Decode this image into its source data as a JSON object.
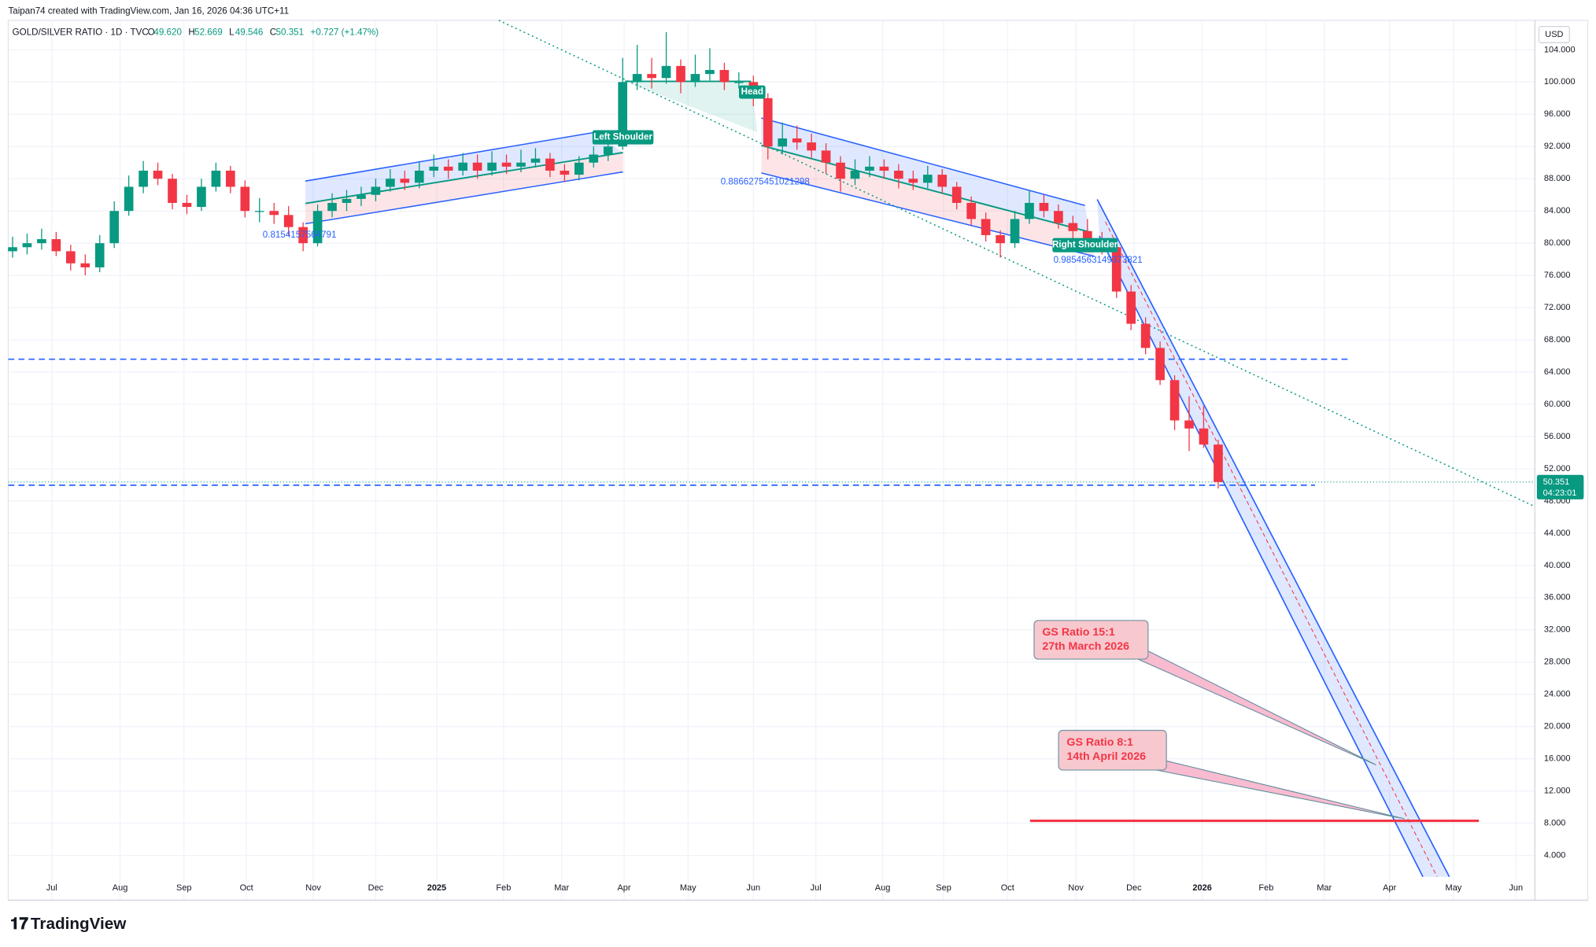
{
  "header": {
    "credit": "Taipan74 created with TradingView.com, Jan 16, 2026 04:36 UTC+11",
    "symbol": "GOLD/SILVER RATIO · 1D · TVC",
    "ohlc": [
      {
        "key": "O",
        "value": "49.620"
      },
      {
        "key": "H",
        "value": "52.669"
      },
      {
        "key": "L",
        "value": "49.546"
      },
      {
        "key": "C",
        "value": "50.351"
      }
    ],
    "change": "+0.727 (+1.47%)"
  },
  "currency": "USD",
  "last_price": {
    "value": 50.351,
    "label": "50.351",
    "countdown": "04:23:01"
  },
  "logo": "TradingView",
  "annotations": {
    "left_shoulder": "Left Shoulder",
    "head": "Head",
    "right_shoulder": "Right Shoulder",
    "fib1": "0.8154157564791",
    "fib2": "0.8866275451021298",
    "fib3": "0.9854563149373821",
    "callout1": [
      "GS Ratio 15:1",
      "27th March 2026"
    ],
    "callout2": [
      "GS Ratio 8:1",
      "14th April 2026"
    ]
  },
  "chart_data": {
    "type": "candlestick",
    "up_color": "#089981",
    "down_color": "#f23645",
    "grid": true,
    "ylim": [
      -1.556,
      107.66
    ],
    "xlim": [
      -0.3,
      104.8
    ],
    "yticks": [
      {
        "value": 4,
        "label": "4.000"
      },
      {
        "value": 8,
        "label": "8.000"
      },
      {
        "value": 12,
        "label": "12.000"
      },
      {
        "value": 16,
        "label": "16.000"
      },
      {
        "value": 20,
        "label": "20.000"
      },
      {
        "value": 24,
        "label": "24.000"
      },
      {
        "value": 28,
        "label": "28.000"
      },
      {
        "value": 32,
        "label": "32.000"
      },
      {
        "value": 36,
        "label": "36.000"
      },
      {
        "value": 40,
        "label": "40.000"
      },
      {
        "value": 44,
        "label": "44.000"
      },
      {
        "value": 48,
        "label": "48.000"
      },
      {
        "value": 52,
        "label": "52.000"
      },
      {
        "value": 56,
        "label": "56.000"
      },
      {
        "value": 60,
        "label": "60.000"
      },
      {
        "value": 64,
        "label": "64.000"
      },
      {
        "value": 68,
        "label": "68.000"
      },
      {
        "value": 72,
        "label": "72.000"
      },
      {
        "value": 76,
        "label": "76.000"
      },
      {
        "value": 80,
        "label": "80.000"
      },
      {
        "value": 84,
        "label": "84.000"
      },
      {
        "value": 88,
        "label": "88.000"
      },
      {
        "value": 92,
        "label": "92.000"
      },
      {
        "value": 96,
        "label": "96.000"
      },
      {
        "value": 100,
        "label": "100.000"
      },
      {
        "value": 104,
        "label": "104.000"
      }
    ],
    "xticks": [
      {
        "value": 2.7,
        "label": "Jul"
      },
      {
        "value": 7.4,
        "label": "Aug"
      },
      {
        "value": 11.8,
        "label": "Sep"
      },
      {
        "value": 16.1,
        "label": "Oct"
      },
      {
        "value": 20.7,
        "label": "Nov"
      },
      {
        "value": 25,
        "label": "Dec"
      },
      {
        "value": 29.2,
        "label": "2025"
      },
      {
        "value": 33.8,
        "label": "Feb"
      },
      {
        "value": 37.8,
        "label": "Mar"
      },
      {
        "value": 42.1,
        "label": "Apr"
      },
      {
        "value": 46.5,
        "label": "May"
      },
      {
        "value": 51,
        "label": "Jun"
      },
      {
        "value": 55.3,
        "label": "Jul"
      },
      {
        "value": 59.9,
        "label": "Aug"
      },
      {
        "value": 64.1,
        "label": "Sep"
      },
      {
        "value": 68.5,
        "label": "Oct"
      },
      {
        "value": 73.2,
        "label": "Nov"
      },
      {
        "value": 77.2,
        "label": "Dec"
      },
      {
        "value": 81.9,
        "label": "2026"
      },
      {
        "value": 86.3,
        "label": "Feb"
      },
      {
        "value": 90.3,
        "label": "Mar"
      },
      {
        "value": 94.8,
        "label": "Apr"
      },
      {
        "value": 99.2,
        "label": "May"
      },
      {
        "value": 103.5,
        "label": "Jun"
      }
    ],
    "levels": [
      {
        "value": 65.6,
        "color": "#2962ff"
      },
      {
        "value": 49.96,
        "color": "#2962ff"
      },
      {
        "value": 8.3,
        "color": "#f23645"
      }
    ],
    "candles": [
      [
        79,
        80.8,
        78.2,
        79.5
      ],
      [
        79.5,
        81.2,
        78.6,
        80
      ],
      [
        80,
        81.8,
        79.2,
        80.5
      ],
      [
        80.5,
        81.4,
        78.4,
        79
      ],
      [
        79,
        79.8,
        76.6,
        77.5
      ],
      [
        77.5,
        78.6,
        76,
        77
      ],
      [
        77,
        81,
        76.4,
        80
      ],
      [
        80,
        85.2,
        79.4,
        84
      ],
      [
        84,
        88.4,
        83.4,
        87
      ],
      [
        87,
        90.2,
        86.2,
        89
      ],
      [
        89,
        90,
        87.2,
        88
      ],
      [
        88,
        88.6,
        84.2,
        85
      ],
      [
        85,
        86,
        83.6,
        84.5
      ],
      [
        84.5,
        88,
        84,
        87
      ],
      [
        87,
        90,
        86.4,
        89
      ],
      [
        89,
        89.6,
        86.2,
        87
      ],
      [
        87,
        87.8,
        83.2,
        84
      ],
      [
        84,
        85.6,
        82.6,
        84
      ],
      [
        84,
        85,
        82.4,
        83.5
      ],
      [
        83.5,
        84.6,
        81,
        82
      ],
      [
        82,
        82.6,
        79,
        80
      ],
      [
        80,
        84.8,
        79.6,
        84
      ],
      [
        84,
        86.2,
        83.2,
        85
      ],
      [
        85,
        86.6,
        84,
        85.5
      ],
      [
        85.5,
        87,
        84.6,
        86
      ],
      [
        86,
        88,
        85.2,
        87
      ],
      [
        87,
        89.2,
        86.4,
        88
      ],
      [
        88,
        89,
        86.6,
        87.5
      ],
      [
        87.5,
        90,
        86.8,
        89
      ],
      [
        89,
        91,
        88.2,
        89.5
      ],
      [
        89.5,
        90.4,
        88,
        89
      ],
      [
        89,
        91.2,
        88.4,
        90
      ],
      [
        90,
        91,
        88,
        89
      ],
      [
        89,
        91.4,
        88.4,
        90
      ],
      [
        90,
        91,
        88.6,
        89.5
      ],
      [
        89.5,
        91.6,
        88.8,
        90
      ],
      [
        90,
        91.8,
        89.4,
        90.5
      ],
      [
        90.5,
        91.2,
        88.2,
        89
      ],
      [
        89,
        89.8,
        87.6,
        88.5
      ],
      [
        88.5,
        90.8,
        87.8,
        90
      ],
      [
        90,
        92,
        89.4,
        91
      ],
      [
        91,
        93,
        90.2,
        92
      ],
      [
        92,
        103,
        91.6,
        100
      ],
      [
        100,
        104.6,
        99,
        101
      ],
      [
        101,
        103,
        99.2,
        100.5
      ],
      [
        100.5,
        106.2,
        99.8,
        102
      ],
      [
        102,
        102.8,
        98.6,
        100
      ],
      [
        100,
        103.4,
        99.4,
        101
      ],
      [
        101,
        104.2,
        100.2,
        101.5
      ],
      [
        101.5,
        102.4,
        99,
        100
      ],
      [
        100,
        101.2,
        99.2,
        100
      ],
      [
        100,
        100.8,
        97,
        98
      ],
      [
        98,
        98.6,
        90.4,
        92
      ],
      [
        92,
        95,
        91,
        93
      ],
      [
        93,
        94.6,
        91.6,
        92.5
      ],
      [
        92.5,
        93.6,
        90.6,
        91.5
      ],
      [
        91.5,
        92.4,
        88.6,
        90
      ],
      [
        90,
        90.8,
        86.4,
        88
      ],
      [
        88,
        90.4,
        87.2,
        89
      ],
      [
        89,
        90.8,
        88.2,
        89.5
      ],
      [
        89.5,
        90.4,
        88,
        89
      ],
      [
        89,
        89.8,
        86.8,
        88
      ],
      [
        88,
        89,
        86.6,
        87.5
      ],
      [
        87.5,
        89.6,
        86.8,
        88.5
      ],
      [
        88.5,
        89.2,
        86.2,
        87
      ],
      [
        87,
        87.6,
        84.2,
        85
      ],
      [
        85,
        85.8,
        82.2,
        83
      ],
      [
        83,
        83.8,
        80.2,
        81
      ],
      [
        81,
        81.6,
        78.2,
        80
      ],
      [
        80,
        84,
        79.4,
        83
      ],
      [
        83,
        86.6,
        82.4,
        85
      ],
      [
        85,
        86,
        83.2,
        84
      ],
      [
        84,
        84.8,
        81.8,
        82.5
      ],
      [
        82.5,
        83.4,
        80.6,
        81.5
      ],
      [
        81.5,
        83,
        79.6,
        80.5
      ],
      [
        80.5,
        81.4,
        78.6,
        79.5
      ],
      [
        79.5,
        80.2,
        73.2,
        74
      ],
      [
        74,
        74.8,
        69.2,
        70
      ],
      [
        70,
        70.8,
        66.2,
        67
      ],
      [
        67,
        67.8,
        62.4,
        63
      ],
      [
        63,
        63.6,
        56.8,
        58
      ],
      [
        58,
        61,
        54.2,
        57
      ],
      [
        57,
        59.8,
        54.6,
        55
      ],
      [
        55,
        55.6,
        49.546,
        50.351
      ]
    ]
  }
}
